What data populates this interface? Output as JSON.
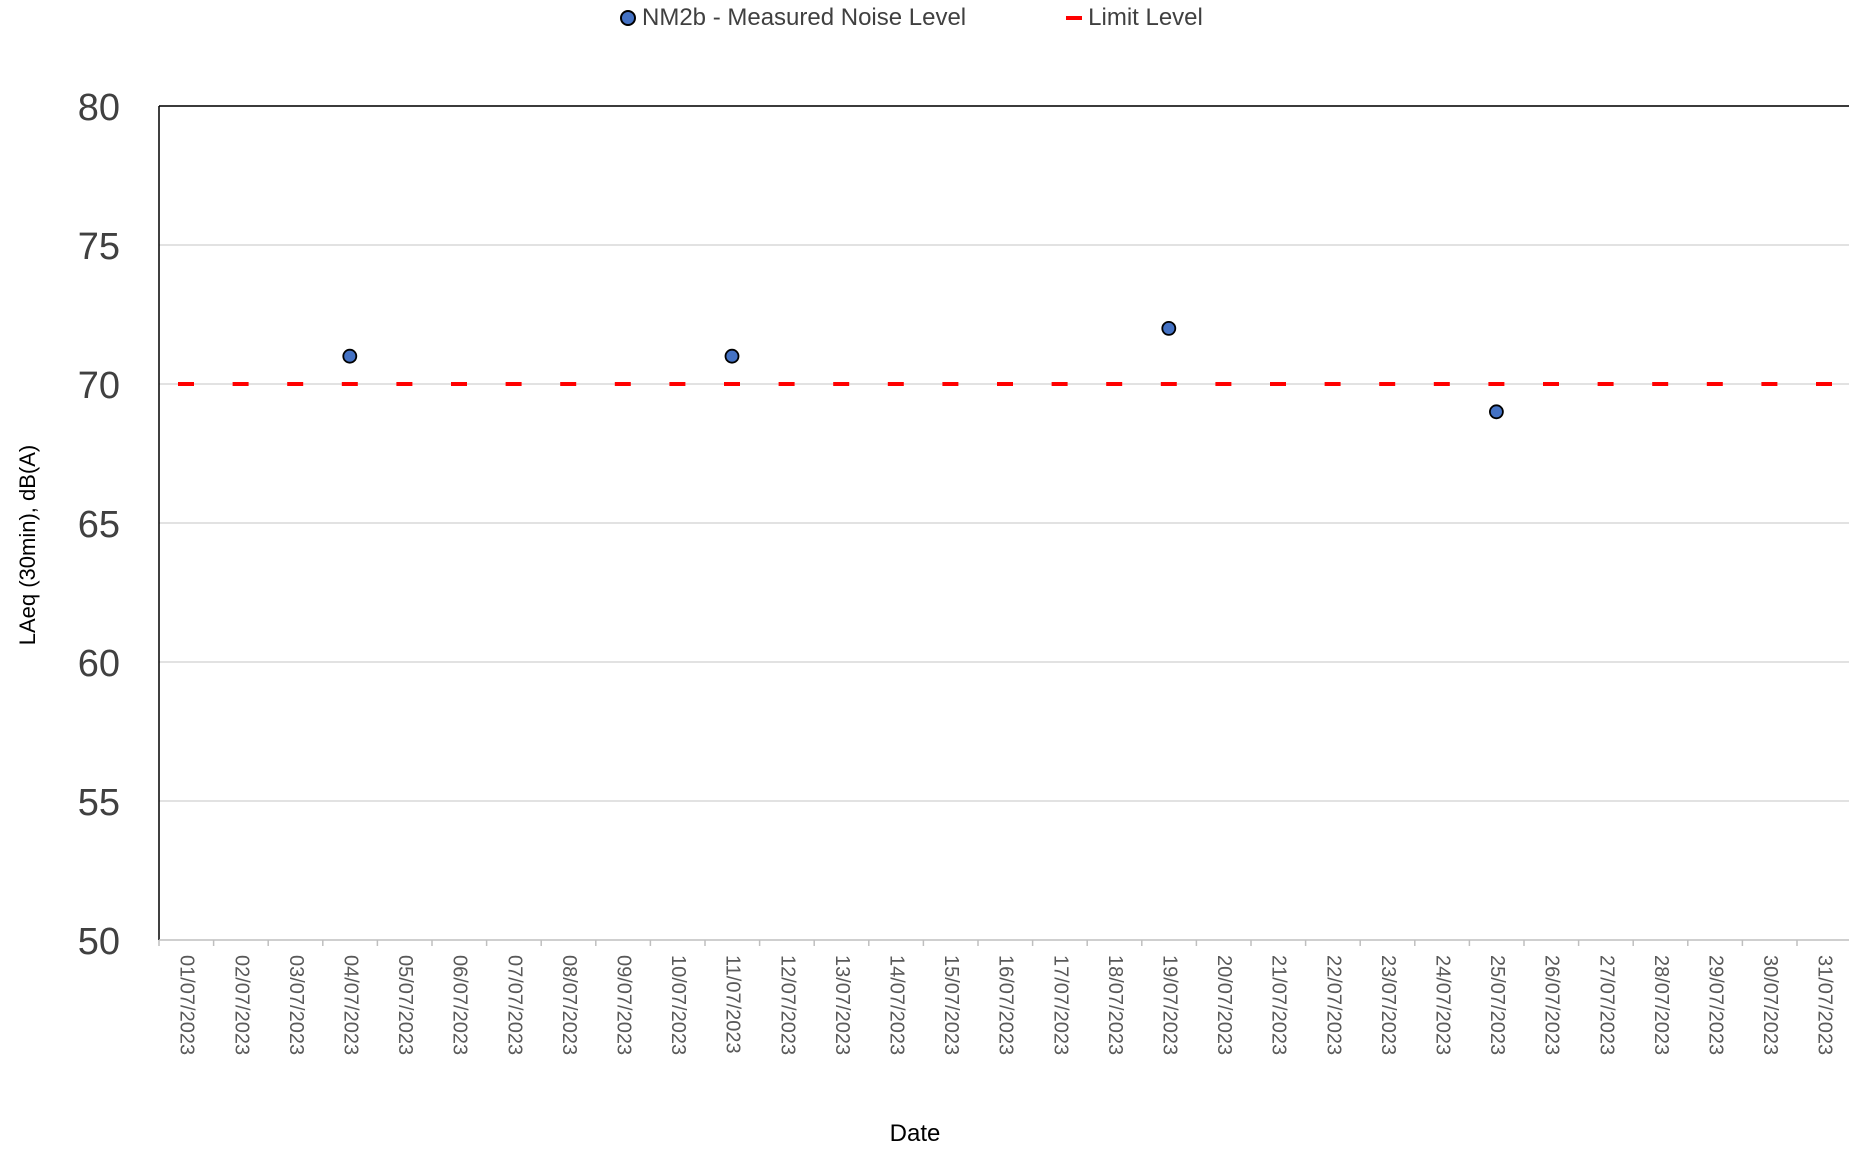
{
  "chart_data": {
    "type": "scatter",
    "title": "",
    "xlabel": "Date",
    "ylabel": "LAeq (30min), dB(A)",
    "ylim": [
      50,
      80
    ],
    "yticks": [
      50,
      55,
      60,
      65,
      70,
      75,
      80
    ],
    "grid": true,
    "legend_position": "top",
    "categories": [
      "01/07/2023",
      "02/07/2023",
      "03/07/2023",
      "04/07/2023",
      "05/07/2023",
      "06/07/2023",
      "07/07/2023",
      "08/07/2023",
      "09/07/2023",
      "10/07/2023",
      "11/07/2023",
      "12/07/2023",
      "13/07/2023",
      "14/07/2023",
      "15/07/2023",
      "16/07/2023",
      "17/07/2023",
      "18/07/2023",
      "19/07/2023",
      "20/07/2023",
      "21/07/2023",
      "22/07/2023",
      "23/07/2023",
      "24/07/2023",
      "25/07/2023",
      "26/07/2023",
      "27/07/2023",
      "28/07/2023",
      "29/07/2023",
      "30/07/2023",
      "31/07/2023"
    ],
    "series": [
      {
        "name": "NM2b - Measured Noise Level",
        "kind": "markers",
        "color": "#4472C4",
        "points": [
          {
            "x": "04/07/2023",
            "y": 71
          },
          {
            "x": "11/07/2023",
            "y": 71
          },
          {
            "x": "19/07/2023",
            "y": 72
          },
          {
            "x": "25/07/2023",
            "y": 69
          }
        ]
      },
      {
        "name": "Limit Level",
        "kind": "dash",
        "color": "#ff0000",
        "value": 70
      }
    ]
  }
}
